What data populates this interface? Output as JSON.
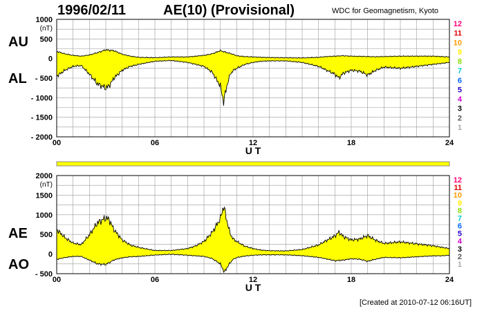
{
  "header": {
    "date": "1996/02/11",
    "title": "AE(10) (Provisional)",
    "source": "WDC for Geomagnetism, Kyoto"
  },
  "footer": {
    "created": "[Created at 2010-07-12 06:16UT]"
  },
  "colors": {
    "fill": "#ffff00",
    "line": "#000000",
    "grid": "#999999"
  },
  "level_scale": {
    "labels": [
      "12",
      "11",
      "10",
      "9",
      "8",
      "7",
      "6",
      "5",
      "4",
      "3",
      "2",
      "1"
    ],
    "colors": [
      "#ff0077",
      "#dd0000",
      "#ff9900",
      "#ffee00",
      "#88dd00",
      "#00cccc",
      "#0066ff",
      "#2200cc",
      "#cc00cc",
      "#000000",
      "#555555",
      "#aaaaaa"
    ]
  },
  "chart_data": [
    {
      "type": "area",
      "panel": "AU/AL",
      "side_labels": [
        "AU",
        "AL"
      ],
      "unit": "(nT)",
      "xlabel": "U T",
      "xlim": [
        0,
        24
      ],
      "xticks": [
        0,
        6,
        12,
        18,
        24
      ],
      "xtick_labels": [
        "00",
        "06",
        "12",
        "18",
        "24"
      ],
      "ylim": [
        -2000,
        1000
      ],
      "yticks": [
        1000,
        500,
        0,
        -500,
        -1000,
        -1500,
        -2000
      ],
      "ytick_labels": [
        "1000",
        "500",
        "0",
        "- 500",
        "- 1000",
        "- 1500",
        "- 2000"
      ],
      "grid": true,
      "series": [
        {
          "name": "AU",
          "x": [
            0,
            0.5,
            1,
            1.5,
            2,
            2.5,
            3,
            3.5,
            4,
            4.5,
            5,
            6,
            7,
            8,
            8.5,
            9,
            9.5,
            10,
            10.25,
            10.5,
            10.75,
            11,
            11.5,
            12,
            12.5,
            13,
            14,
            15,
            16,
            16.5,
            17,
            17.5,
            18,
            18.5,
            19,
            19.5,
            20,
            21,
            22,
            23,
            23.5,
            24
          ],
          "y": [
            180,
            120,
            80,
            60,
            90,
            150,
            220,
            200,
            110,
            60,
            30,
            20,
            40,
            40,
            60,
            80,
            120,
            200,
            170,
            140,
            110,
            70,
            50,
            40,
            30,
            25,
            20,
            15,
            30,
            50,
            60,
            70,
            60,
            55,
            50,
            45,
            50,
            60,
            60,
            60,
            50,
            40
          ]
        },
        {
          "name": "AL",
          "x": [
            0,
            0.5,
            1,
            1.5,
            2,
            2.5,
            3,
            3.2,
            3.5,
            4,
            4.5,
            5,
            6,
            7,
            8,
            8.5,
            9,
            9.5,
            10,
            10.2,
            10.4,
            10.6,
            10.8,
            11,
            11.5,
            12,
            12.5,
            13,
            14,
            15,
            16,
            16.5,
            17,
            17.25,
            17.5,
            18,
            18.5,
            19,
            19.5,
            20,
            21,
            22,
            23,
            24
          ],
          "y": [
            -450,
            -300,
            -200,
            -180,
            -400,
            -650,
            -750,
            -700,
            -500,
            -300,
            -200,
            -150,
            -70,
            -50,
            -100,
            -150,
            -200,
            -350,
            -700,
            -1100,
            -700,
            -400,
            -300,
            -250,
            -150,
            -100,
            -70,
            -60,
            -60,
            -100,
            -200,
            -300,
            -400,
            -500,
            -380,
            -300,
            -320,
            -420,
            -300,
            -220,
            -250,
            -200,
            -150,
            -100
          ]
        }
      ]
    },
    {
      "type": "area",
      "panel": "AE/AO",
      "side_labels": [
        "AE",
        "AO"
      ],
      "unit": "(nT)",
      "xlabel": "U T",
      "xlim": [
        0,
        24
      ],
      "xticks": [
        0,
        6,
        12,
        18,
        24
      ],
      "xtick_labels": [
        "00",
        "06",
        "12",
        "18",
        "24"
      ],
      "ylim": [
        -500,
        2000
      ],
      "yticks": [
        2000,
        1500,
        1000,
        500,
        0,
        -500
      ],
      "ytick_labels": [
        "2000",
        "1500",
        "1000",
        "500",
        "0",
        "- 500"
      ],
      "grid": true,
      "series": [
        {
          "name": "AE",
          "x": [
            0,
            0.5,
            1,
            1.5,
            2,
            2.5,
            3,
            3.2,
            3.5,
            4,
            4.5,
            5,
            6,
            7,
            8,
            8.5,
            9,
            9.5,
            10,
            10.2,
            10.4,
            10.6,
            10.8,
            11,
            11.5,
            12,
            12.5,
            13,
            14,
            15,
            16,
            16.5,
            17,
            17.25,
            17.5,
            18,
            18.5,
            19,
            19.5,
            20,
            21,
            22,
            23,
            24
          ],
          "y": [
            630,
            420,
            280,
            240,
            490,
            800,
            920,
            880,
            620,
            360,
            230,
            170,
            90,
            90,
            140,
            210,
            320,
            550,
            900,
            1230,
            850,
            520,
            380,
            320,
            200,
            140,
            100,
            85,
            80,
            115,
            230,
            350,
            460,
            560,
            450,
            360,
            380,
            470,
            350,
            270,
            310,
            260,
            210,
            140
          ]
        },
        {
          "name": "AO",
          "x": [
            0,
            0.5,
            1,
            1.5,
            2,
            2.5,
            3,
            3.5,
            4,
            4.5,
            5,
            6,
            7,
            8,
            8.5,
            9,
            9.5,
            10,
            10.25,
            10.5,
            10.75,
            11,
            11.5,
            12,
            12.5,
            13,
            14,
            15,
            16,
            16.5,
            17,
            17.5,
            18,
            18.5,
            19,
            19.5,
            20,
            21,
            22,
            23,
            23.5,
            24
          ],
          "y": [
            -135,
            -90,
            -60,
            -60,
            -155,
            -250,
            -265,
            -150,
            -95,
            -70,
            -60,
            -25,
            -5,
            -30,
            -45,
            -60,
            -115,
            -250,
            -465,
            -280,
            -145,
            -90,
            -50,
            -30,
            -20,
            -18,
            -20,
            -42,
            -85,
            -125,
            -170,
            -155,
            -120,
            -130,
            -185,
            -130,
            -85,
            -95,
            -70,
            -45,
            -45,
            -30
          ]
        }
      ]
    }
  ]
}
